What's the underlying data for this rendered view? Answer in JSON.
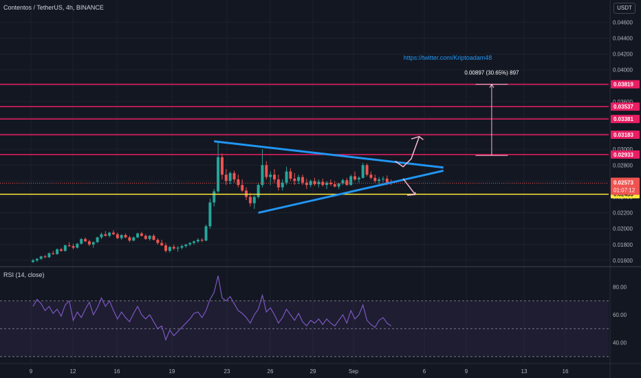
{
  "header": {
    "title": "Contentos / TetherUS, 4h, BINANCE",
    "currency": "USDT",
    "rsi_label": "RSI (14, close)",
    "watermark": "https://twitter.com/Kriptoadam48",
    "measure_label": "0.00897 (30.65%) 897"
  },
  "colors": {
    "background": "#131722",
    "grid": "#1e222d",
    "up": "#26a69a",
    "down": "#ef5350",
    "resistance": "#e91e63",
    "support": "#ffeb3b",
    "trendline": "#2196f3",
    "rsi_line": "#7e57c2",
    "watermark": "#2196f3"
  },
  "chart_data": [
    {
      "type": "candlestick",
      "symbol": "Contentos / TetherUS",
      "interval": "4h",
      "exchange": "BINANCE",
      "y_ticks": [
        0.016,
        0.018,
        0.02,
        0.022,
        0.024,
        0.026,
        0.028,
        0.03,
        0.032,
        0.034,
        0.036,
        0.038,
        0.04,
        0.042,
        0.044,
        0.046
      ],
      "y_tick_labels": [
        "0.01600",
        "0.01800",
        "0.02000",
        "0.02200",
        "0.02400",
        "0.02600",
        "0.02800",
        "0.03000",
        "0.03200",
        "0.03400",
        "0.03600",
        "0.03800",
        "0.04000",
        "0.04200",
        "0.04400",
        "0.04600"
      ],
      "ylim": [
        0.0153,
        0.0488
      ],
      "x_labels": [
        "9",
        "12",
        "16",
        "19",
        "23",
        "26",
        "29",
        "Sep",
        "6",
        "9",
        "13",
        "16"
      ],
      "ohlc": [
        [
          0.0158,
          0.0162,
          0.0157,
          0.016
        ],
        [
          0.016,
          0.0163,
          0.0158,
          0.0162
        ],
        [
          0.0162,
          0.0166,
          0.0161,
          0.0165
        ],
        [
          0.0165,
          0.0167,
          0.0163,
          0.0164
        ],
        [
          0.0164,
          0.017,
          0.0163,
          0.0169
        ],
        [
          0.0169,
          0.0172,
          0.0167,
          0.0168
        ],
        [
          0.0168,
          0.0175,
          0.0167,
          0.0174
        ],
        [
          0.0174,
          0.0176,
          0.0171,
          0.0172
        ],
        [
          0.0172,
          0.018,
          0.0171,
          0.0179
        ],
        [
          0.0179,
          0.0183,
          0.0177,
          0.0178
        ],
        [
          0.0178,
          0.0181,
          0.0174,
          0.0176
        ],
        [
          0.0176,
          0.0182,
          0.0175,
          0.0181
        ],
        [
          0.0181,
          0.0188,
          0.018,
          0.0187
        ],
        [
          0.0187,
          0.0189,
          0.0183,
          0.0184
        ],
        [
          0.0184,
          0.0186,
          0.0178,
          0.018
        ],
        [
          0.018,
          0.0184,
          0.0176,
          0.0183
        ],
        [
          0.0183,
          0.019,
          0.0182,
          0.0189
        ],
        [
          0.0189,
          0.0195,
          0.0187,
          0.0193
        ],
        [
          0.0193,
          0.0197,
          0.019,
          0.0191
        ],
        [
          0.0191,
          0.0196,
          0.0189,
          0.0195
        ],
        [
          0.0195,
          0.0198,
          0.0192,
          0.0193
        ],
        [
          0.0193,
          0.0195,
          0.0187,
          0.0188
        ],
        [
          0.0188,
          0.0193,
          0.0186,
          0.0192
        ],
        [
          0.0192,
          0.0194,
          0.0188,
          0.0189
        ],
        [
          0.0189,
          0.0191,
          0.0183,
          0.0185
        ],
        [
          0.0185,
          0.019,
          0.0184,
          0.0189
        ],
        [
          0.0189,
          0.0195,
          0.0188,
          0.0194
        ],
        [
          0.0194,
          0.0196,
          0.019,
          0.0191
        ],
        [
          0.0191,
          0.0193,
          0.0186,
          0.0187
        ],
        [
          0.0187,
          0.0192,
          0.0185,
          0.0191
        ],
        [
          0.0191,
          0.0193,
          0.0185,
          0.0186
        ],
        [
          0.0186,
          0.0188,
          0.018,
          0.0182
        ],
        [
          0.0182,
          0.0186,
          0.0178,
          0.0179
        ],
        [
          0.0179,
          0.0182,
          0.017,
          0.0172
        ],
        [
          0.0172,
          0.0178,
          0.017,
          0.0177
        ],
        [
          0.0177,
          0.018,
          0.0173,
          0.0175
        ],
        [
          0.0175,
          0.0178,
          0.0171,
          0.0176
        ],
        [
          0.0176,
          0.018,
          0.0174,
          0.0178
        ],
        [
          0.0178,
          0.0181,
          0.0176,
          0.018
        ],
        [
          0.018,
          0.0183,
          0.0178,
          0.0182
        ],
        [
          0.0182,
          0.0185,
          0.018,
          0.0184
        ],
        [
          0.0184,
          0.0188,
          0.0182,
          0.0186
        ],
        [
          0.0186,
          0.0188,
          0.0183,
          0.0185
        ],
        [
          0.0185,
          0.0205,
          0.0184,
          0.0203
        ],
        [
          0.0203,
          0.0238,
          0.02,
          0.0233
        ],
        [
          0.0233,
          0.025,
          0.0228,
          0.0247
        ],
        [
          0.0247,
          0.031,
          0.0245,
          0.029
        ],
        [
          0.029,
          0.0295,
          0.0262,
          0.0268
        ],
        [
          0.0268,
          0.0275,
          0.0255,
          0.026
        ],
        [
          0.026,
          0.0272,
          0.0256,
          0.027
        ],
        [
          0.027,
          0.0273,
          0.0258,
          0.0262
        ],
        [
          0.0262,
          0.0268,
          0.0252,
          0.0255
        ],
        [
          0.0255,
          0.0262,
          0.0246,
          0.0248
        ],
        [
          0.0248,
          0.0252,
          0.0236,
          0.024
        ],
        [
          0.024,
          0.0245,
          0.0228,
          0.0232
        ],
        [
          0.0232,
          0.0242,
          0.0225,
          0.024
        ],
        [
          0.024,
          0.0258,
          0.0238,
          0.0255
        ],
        [
          0.0255,
          0.03,
          0.0252,
          0.028
        ],
        [
          0.028,
          0.0285,
          0.0262,
          0.0265
        ],
        [
          0.0265,
          0.0272,
          0.0255,
          0.0268
        ],
        [
          0.0268,
          0.0275,
          0.0258,
          0.0262
        ],
        [
          0.0262,
          0.0268,
          0.0248,
          0.0252
        ],
        [
          0.0252,
          0.0262,
          0.0248,
          0.0258
        ],
        [
          0.0258,
          0.0278,
          0.0255,
          0.0272
        ],
        [
          0.0272,
          0.0276,
          0.026,
          0.0263
        ],
        [
          0.0263,
          0.027,
          0.0255,
          0.026
        ],
        [
          0.026,
          0.0268,
          0.0256,
          0.0265
        ],
        [
          0.0265,
          0.0268,
          0.0255,
          0.0258
        ],
        [
          0.0258,
          0.0263,
          0.025,
          0.0255
        ],
        [
          0.0255,
          0.0262,
          0.0252,
          0.026
        ],
        [
          0.026,
          0.0264,
          0.0254,
          0.0256
        ],
        [
          0.0256,
          0.0262,
          0.0252,
          0.0259
        ],
        [
          0.0259,
          0.0263,
          0.0253,
          0.0255
        ],
        [
          0.0255,
          0.026,
          0.025,
          0.0258
        ],
        [
          0.0258,
          0.0262,
          0.0254,
          0.0256
        ],
        [
          0.0256,
          0.026,
          0.0252,
          0.0253
        ],
        [
          0.0253,
          0.0258,
          0.025,
          0.0257
        ],
        [
          0.0257,
          0.0263,
          0.0255,
          0.0261
        ],
        [
          0.0261,
          0.0264,
          0.0254,
          0.0255
        ],
        [
          0.0255,
          0.0268,
          0.0254,
          0.0266
        ],
        [
          0.0266,
          0.0272,
          0.026,
          0.0262
        ],
        [
          0.0262,
          0.0266,
          0.0258,
          0.0264
        ],
        [
          0.0264,
          0.0283,
          0.0263,
          0.028
        ],
        [
          0.028,
          0.0282,
          0.0266,
          0.0268
        ],
        [
          0.0268,
          0.0272,
          0.0262,
          0.0264
        ],
        [
          0.0264,
          0.0268,
          0.0258,
          0.026
        ],
        [
          0.026,
          0.0265,
          0.0256,
          0.0262
        ],
        [
          0.0262,
          0.0266,
          0.0258,
          0.0263
        ],
        [
          0.0263,
          0.0267,
          0.0255,
          0.0258
        ],
        [
          0.0258,
          0.0262,
          0.0255,
          0.0257
        ]
      ]
    },
    {
      "type": "line",
      "title": "RSI (14, close)",
      "y_ticks": [
        40,
        60,
        80
      ],
      "y_tick_labels": [
        "40.00",
        "60.00",
        "80.00"
      ],
      "ylim": [
        26,
        94
      ],
      "bands": [
        70,
        50,
        30
      ],
      "values": [
        66,
        71,
        68,
        63,
        66,
        61,
        64,
        59,
        67,
        70,
        56,
        62,
        58,
        64,
        69,
        60,
        65,
        72,
        66,
        70,
        63,
        57,
        62,
        58,
        55,
        61,
        66,
        60,
        57,
        60,
        55,
        50,
        52,
        42,
        49,
        45,
        48,
        51,
        54,
        57,
        61,
        62,
        58,
        63,
        71,
        76,
        88,
        72,
        70,
        73,
        68,
        63,
        61,
        58,
        54,
        60,
        64,
        74,
        62,
        65,
        60,
        54,
        58,
        64,
        60,
        56,
        61,
        55,
        52,
        56,
        54,
        57,
        53,
        57,
        54,
        52,
        56,
        60,
        54,
        63,
        57,
        60,
        67,
        56,
        53,
        51,
        56,
        58,
        54,
        52
      ],
      "x_labels": [
        "9",
        "12",
        "16",
        "19",
        "23",
        "26",
        "29",
        "Sep",
        "6",
        "9",
        "13",
        "16"
      ]
    }
  ],
  "levels": {
    "resistance": [
      0.03819,
      0.03537,
      0.03381,
      0.03183,
      0.02933
    ],
    "resistance_labels": [
      "0.03819",
      "0.03537",
      "0.03381",
      "0.03183",
      "0.02933"
    ],
    "support": 0.02433,
    "support_label": "0.02433",
    "last_price": 0.02573,
    "last_price_label": "0.02573",
    "countdown": "01:07:12"
  }
}
